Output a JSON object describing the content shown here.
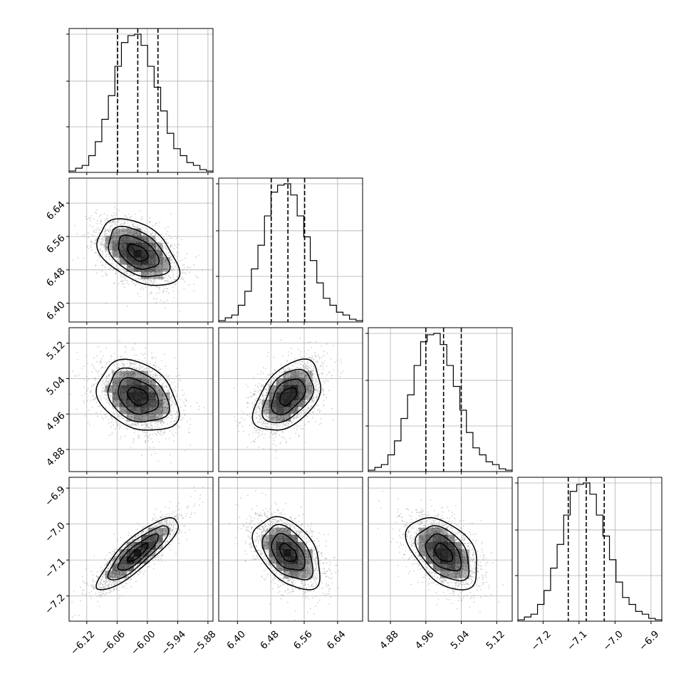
{
  "chart_data": {
    "type": "corner",
    "parameters": [
      {
        "index": 0,
        "range": [
          -6.155,
          -5.87
        ],
        "ticks": [
          -6.12,
          -6.06,
          -6.0,
          -5.94,
          -5.88
        ],
        "tick_labels": [
          "−6.12",
          "−6.06",
          "−6.00",
          "−5.94",
          "−5.88"
        ],
        "quantiles": [
          -6.059,
          -6.019,
          -5.979
        ],
        "hist": [
          0.01,
          0.03,
          0.05,
          0.12,
          0.22,
          0.38,
          0.55,
          0.76,
          0.93,
          0.98,
          0.99,
          0.91,
          0.76,
          0.61,
          0.44,
          0.28,
          0.17,
          0.12,
          0.07,
          0.05,
          0.02,
          0.01
        ]
      },
      {
        "index": 1,
        "range": [
          6.355,
          6.7
        ],
        "ticks": [
          6.4,
          6.48,
          6.56,
          6.64
        ],
        "tick_labels": [
          "6.40",
          "6.48",
          "6.56",
          "6.64"
        ],
        "quantiles": [
          6.481,
          6.521,
          6.561
        ],
        "hist": [
          0.01,
          0.03,
          0.05,
          0.12,
          0.22,
          0.38,
          0.55,
          0.76,
          0.93,
          0.98,
          0.99,
          0.91,
          0.76,
          0.61,
          0.44,
          0.28,
          0.17,
          0.12,
          0.07,
          0.05,
          0.02,
          0.01
        ]
      },
      {
        "index": 2,
        "range": [
          4.83,
          5.155
        ],
        "ticks": [
          4.88,
          4.96,
          5.04,
          5.12
        ],
        "tick_labels": [
          "4.88",
          "4.96",
          "5.04",
          "5.12"
        ],
        "quantiles": [
          4.96,
          5.0,
          5.04
        ],
        "hist": [
          0.01,
          0.03,
          0.05,
          0.12,
          0.22,
          0.38,
          0.55,
          0.76,
          0.93,
          0.98,
          0.99,
          0.91,
          0.76,
          0.61,
          0.44,
          0.28,
          0.17,
          0.12,
          0.07,
          0.05,
          0.02,
          0.01
        ]
      },
      {
        "index": 3,
        "range": [
          -7.27,
          -6.87
        ],
        "ticks": [
          -7.2,
          -7.1,
          -7.0,
          -6.9
        ],
        "tick_labels": [
          "−7.2",
          "−7.1",
          "−7.0",
          "−6.9"
        ],
        "quantiles": [
          -7.13,
          -7.08,
          -7.03
        ],
        "hist": [
          0.01,
          0.03,
          0.05,
          0.12,
          0.22,
          0.38,
          0.55,
          0.76,
          0.93,
          0.98,
          0.99,
          0.91,
          0.76,
          0.61,
          0.44,
          0.28,
          0.17,
          0.12,
          0.07,
          0.05,
          0.02,
          0.01
        ]
      }
    ],
    "pairs": [
      {
        "x": 0,
        "y": 1,
        "mean": [
          -6.019,
          6.521
        ],
        "sd": [
          0.04,
          0.04
        ],
        "rho": -0.45
      },
      {
        "x": 0,
        "y": 2,
        "mean": [
          -6.019,
          5.0
        ],
        "sd": [
          0.04,
          0.04
        ],
        "rho": -0.3
      },
      {
        "x": 1,
        "y": 2,
        "mean": [
          6.521,
          5.0
        ],
        "sd": [
          0.04,
          0.04
        ],
        "rho": 0.45
      },
      {
        "x": 0,
        "y": 3,
        "mean": [
          -6.019,
          -7.08
        ],
        "sd": [
          0.04,
          0.05
        ],
        "rho": 0.85
      },
      {
        "x": 1,
        "y": 3,
        "mean": [
          6.521,
          -7.08
        ],
        "sd": [
          0.04,
          0.05
        ],
        "rho": -0.45
      },
      {
        "x": 2,
        "y": 3,
        "mean": [
          5.0,
          -7.08
        ],
        "sd": [
          0.04,
          0.05
        ],
        "rho": -0.45
      }
    ],
    "hist_ticks": [
      0.33,
      0.66,
      1.0
    ],
    "contour_levels": [
      0.5,
      1.0,
      1.5,
      2.0
    ],
    "grid": true,
    "colors": {
      "points": "#9a9a9a",
      "density": "#000000",
      "lines": "#000000",
      "grid": "#b0b0b0"
    }
  }
}
